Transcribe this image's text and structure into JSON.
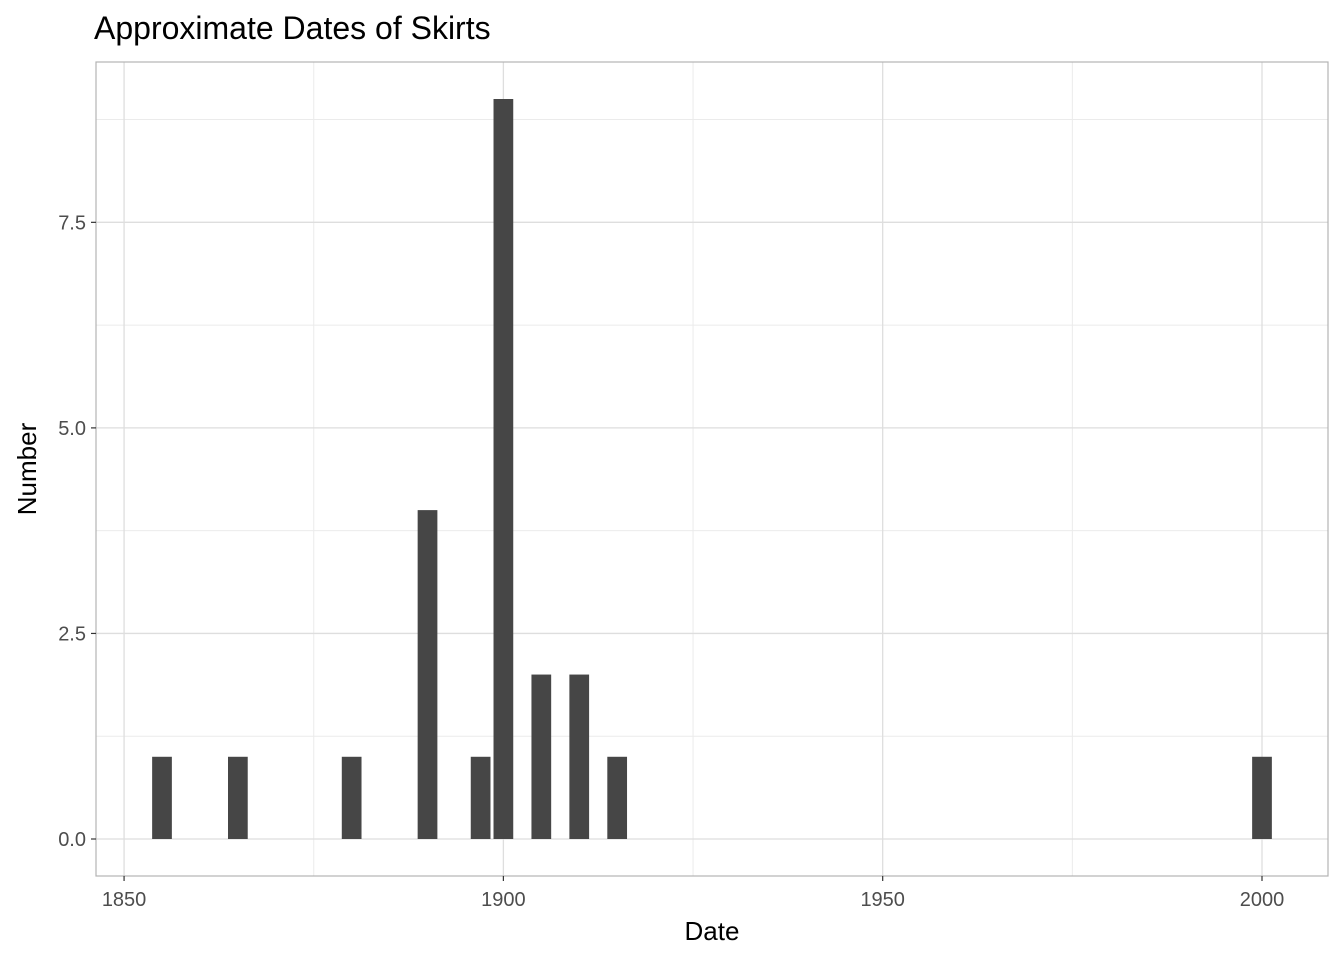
{
  "chart_data": {
    "type": "bar",
    "title": "Approximate Dates of Skirts",
    "xlabel": "Date",
    "ylabel": "Number",
    "x": [
      1855,
      1865,
      1880,
      1890,
      1897,
      1900,
      1905,
      1910,
      1915,
      2000
    ],
    "values": [
      1,
      1,
      1,
      4,
      1,
      9,
      2,
      2,
      1,
      1
    ],
    "xlim": [
      1846.3,
      2008.7
    ],
    "ylim": [
      -0.45,
      9.45
    ],
    "x_ticks": [
      1850,
      1900,
      1950,
      2000
    ],
    "x_tick_labels": [
      "1850",
      "1900",
      "1950",
      "2000"
    ],
    "y_ticks": [
      0,
      2.5,
      5,
      7.5
    ],
    "y_tick_labels": [
      "0.0",
      "2.5",
      "5.0",
      "7.5"
    ],
    "bar_width_years": 2.6,
    "grid": true,
    "colors": {
      "bar": "#464646",
      "panel_border": "#b3b3b3",
      "grid_major": "#dedede",
      "grid_minor": "#ebebeb",
      "tick_text": "#4d4d4d"
    }
  }
}
